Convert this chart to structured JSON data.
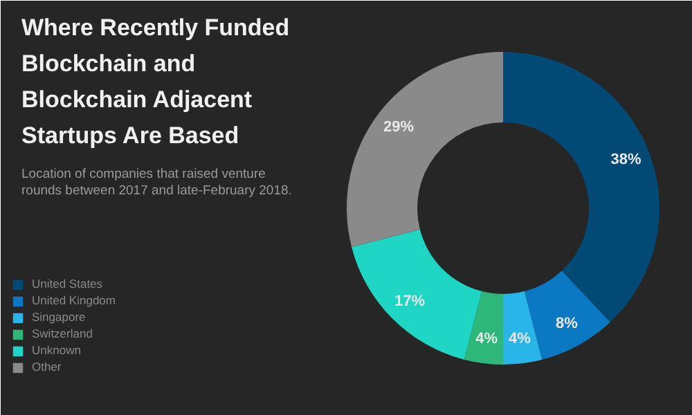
{
  "chart_data": {
    "type": "donut",
    "title": "Where Recently Funded Blockchain and Blockchain Adjacent Startups Are Based",
    "subtitle": "Location of companies that raised venture rounds between 2017 and late-February 2018.",
    "categories": [
      "United States",
      "United Kingdom",
      "Singapore",
      "Switzerland",
      "Unknown",
      "Other"
    ],
    "values": [
      38,
      8,
      4,
      4,
      17,
      29
    ],
    "colors": [
      "#004a75",
      "#0a78c2",
      "#29b5e8",
      "#2db87a",
      "#1ed6c3",
      "#8a8a8a"
    ],
    "value_labels": [
      "38%",
      "8%",
      "4%",
      "4%",
      "17%",
      "29%"
    ],
    "legend": "left"
  }
}
